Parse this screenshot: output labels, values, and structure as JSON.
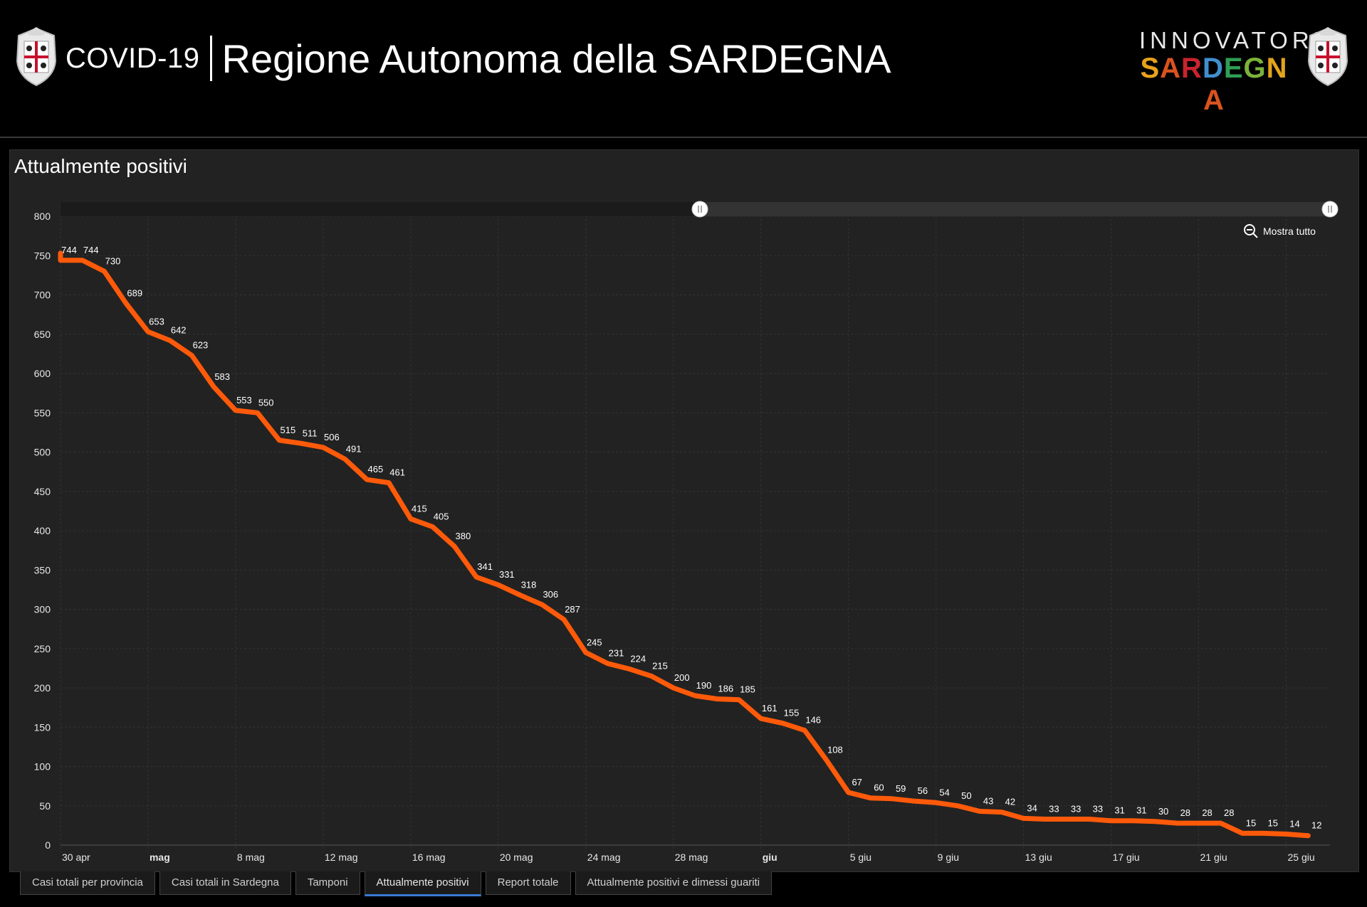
{
  "header": {
    "title_small": "COVID-19",
    "title_big": "Regione Autonoma della SARDEGNA",
    "brand_top": "INNOVATORI",
    "brand_bottom_letters": [
      {
        "ch": "S",
        "color": "#e8a21a"
      },
      {
        "ch": "A",
        "color": "#d9531e"
      },
      {
        "ch": "R",
        "color": "#c7242f"
      },
      {
        "ch": "D",
        "color": "#3f8fcf"
      },
      {
        "ch": "E",
        "color": "#2f9e54"
      },
      {
        "ch": "G",
        "color": "#7bb23a"
      },
      {
        "ch": "N",
        "color": "#e3a31c"
      },
      {
        "ch": "A",
        "color": "#d9531e"
      }
    ]
  },
  "panel": {
    "title": "Attualmente positivi",
    "zoom_label": "Mostra tutto"
  },
  "tabs": [
    {
      "label": "Casi totali per provincia",
      "active": false
    },
    {
      "label": "Casi totali in Sardegna",
      "active": false
    },
    {
      "label": "Tamponi",
      "active": false
    },
    {
      "label": "Attualmente positivi",
      "active": true
    },
    {
      "label": "Report totale",
      "active": false
    },
    {
      "label": "Attualmente positivi e dimessi guariti",
      "active": false
    }
  ],
  "chart_data": {
    "type": "line",
    "title": "Attualmente positivi",
    "color": "#ff5a0a",
    "ylim": [
      0,
      800
    ],
    "yticks": [
      0,
      50,
      100,
      150,
      200,
      250,
      300,
      350,
      400,
      450,
      500,
      550,
      600,
      650,
      700,
      750,
      800
    ],
    "x_start": "2020-04-30",
    "x_end": "2020-06-27",
    "xticks": [
      {
        "date": "2020-04-30",
        "label": "30 apr",
        "bold": false
      },
      {
        "date": "2020-05-04",
        "label": "mag",
        "bold": true
      },
      {
        "date": "2020-05-08",
        "label": "8 mag",
        "bold": false
      },
      {
        "date": "2020-05-12",
        "label": "12 mag",
        "bold": false
      },
      {
        "date": "2020-05-16",
        "label": "16 mag",
        "bold": false
      },
      {
        "date": "2020-05-20",
        "label": "20 mag",
        "bold": false
      },
      {
        "date": "2020-05-24",
        "label": "24 mag",
        "bold": false
      },
      {
        "date": "2020-05-28",
        "label": "28 mag",
        "bold": false
      },
      {
        "date": "2020-06-01",
        "label": "giu",
        "bold": true
      },
      {
        "date": "2020-06-05",
        "label": "5 giu",
        "bold": false
      },
      {
        "date": "2020-06-09",
        "label": "9 giu",
        "bold": false
      },
      {
        "date": "2020-06-13",
        "label": "13 giu",
        "bold": false
      },
      {
        "date": "2020-06-17",
        "label": "17 giu",
        "bold": false
      },
      {
        "date": "2020-06-21",
        "label": "21 giu",
        "bold": false
      },
      {
        "date": "2020-06-25",
        "label": "25 giu",
        "bold": false
      }
    ],
    "points": [
      {
        "date": "2020-04-30",
        "y": 753,
        "label": ""
      },
      {
        "date": "2020-04-30",
        "y": 744,
        "label": "744"
      },
      {
        "date": "2020-05-01",
        "y": 744,
        "label": "744"
      },
      {
        "date": "2020-05-02",
        "y": 730,
        "label": "730"
      },
      {
        "date": "2020-05-03",
        "y": 689,
        "label": "689"
      },
      {
        "date": "2020-05-04",
        "y": 653,
        "label": "653"
      },
      {
        "date": "2020-05-05",
        "y": 642,
        "label": "642"
      },
      {
        "date": "2020-05-06",
        "y": 623,
        "label": "623"
      },
      {
        "date": "2020-05-07",
        "y": 583,
        "label": "583"
      },
      {
        "date": "2020-05-08",
        "y": 553,
        "label": "553"
      },
      {
        "date": "2020-05-09",
        "y": 550,
        "label": "550"
      },
      {
        "date": "2020-05-10",
        "y": 515,
        "label": "515"
      },
      {
        "date": "2020-05-11",
        "y": 511,
        "label": "511"
      },
      {
        "date": "2020-05-12",
        "y": 506,
        "label": "506"
      },
      {
        "date": "2020-05-13",
        "y": 491,
        "label": "491"
      },
      {
        "date": "2020-05-14",
        "y": 465,
        "label": "465"
      },
      {
        "date": "2020-05-15",
        "y": 461,
        "label": "461"
      },
      {
        "date": "2020-05-16",
        "y": 415,
        "label": "415"
      },
      {
        "date": "2020-05-17",
        "y": 405,
        "label": "405"
      },
      {
        "date": "2020-05-18",
        "y": 380,
        "label": "380"
      },
      {
        "date": "2020-05-19",
        "y": 341,
        "label": "341"
      },
      {
        "date": "2020-05-20",
        "y": 331,
        "label": "331"
      },
      {
        "date": "2020-05-21",
        "y": 318,
        "label": "318"
      },
      {
        "date": "2020-05-22",
        "y": 306,
        "label": "306"
      },
      {
        "date": "2020-05-23",
        "y": 287,
        "label": "287"
      },
      {
        "date": "2020-05-24",
        "y": 245,
        "label": "245"
      },
      {
        "date": "2020-05-25",
        "y": 231,
        "label": "231"
      },
      {
        "date": "2020-05-26",
        "y": 224,
        "label": "224"
      },
      {
        "date": "2020-05-27",
        "y": 215,
        "label": "215"
      },
      {
        "date": "2020-05-28",
        "y": 200,
        "label": "200"
      },
      {
        "date": "2020-05-29",
        "y": 190,
        "label": "190"
      },
      {
        "date": "2020-05-30",
        "y": 186,
        "label": "186"
      },
      {
        "date": "2020-05-31",
        "y": 185,
        "label": "185"
      },
      {
        "date": "2020-06-01",
        "y": 161,
        "label": "161"
      },
      {
        "date": "2020-06-02",
        "y": 155,
        "label": "155"
      },
      {
        "date": "2020-06-03",
        "y": 146,
        "label": "146"
      },
      {
        "date": "2020-06-04",
        "y": 108,
        "label": "108"
      },
      {
        "date": "2020-06-05",
        "y": 67,
        "label": "67"
      },
      {
        "date": "2020-06-06",
        "y": 60,
        "label": "60"
      },
      {
        "date": "2020-06-07",
        "y": 59,
        "label": "59"
      },
      {
        "date": "2020-06-08",
        "y": 56,
        "label": "56"
      },
      {
        "date": "2020-06-09",
        "y": 54,
        "label": "54"
      },
      {
        "date": "2020-06-10",
        "y": 50,
        "label": "50"
      },
      {
        "date": "2020-06-11",
        "y": 43,
        "label": "43"
      },
      {
        "date": "2020-06-12",
        "y": 42,
        "label": "42"
      },
      {
        "date": "2020-06-13",
        "y": 34,
        "label": "34"
      },
      {
        "date": "2020-06-14",
        "y": 33,
        "label": "33"
      },
      {
        "date": "2020-06-15",
        "y": 33,
        "label": "33"
      },
      {
        "date": "2020-06-16",
        "y": 33,
        "label": "33"
      },
      {
        "date": "2020-06-17",
        "y": 31,
        "label": "31"
      },
      {
        "date": "2020-06-18",
        "y": 31,
        "label": "31"
      },
      {
        "date": "2020-06-19",
        "y": 30,
        "label": "30"
      },
      {
        "date": "2020-06-20",
        "y": 28,
        "label": "28"
      },
      {
        "date": "2020-06-21",
        "y": 28,
        "label": "28"
      },
      {
        "date": "2020-06-22",
        "y": 28,
        "label": "28"
      },
      {
        "date": "2020-06-23",
        "y": 15,
        "label": "15"
      },
      {
        "date": "2020-06-24",
        "y": 15,
        "label": "15"
      },
      {
        "date": "2020-06-25",
        "y": 14,
        "label": "14"
      },
      {
        "date": "2020-06-26",
        "y": 12,
        "label": "12"
      }
    ],
    "grid": true,
    "range_selector": {
      "start": 0.47,
      "end": 1.0
    }
  }
}
